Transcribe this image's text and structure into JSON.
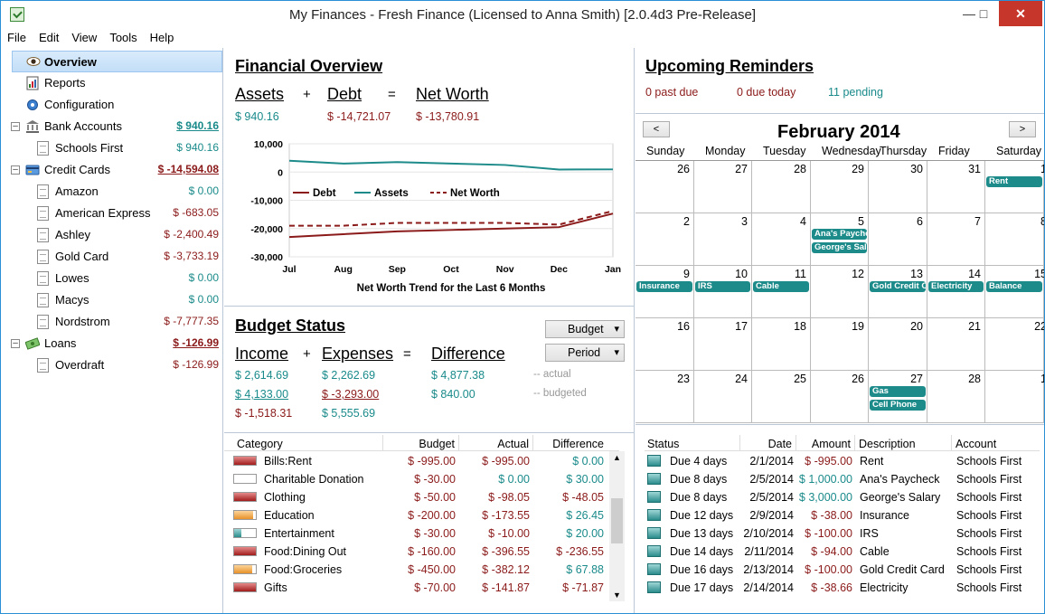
{
  "window": {
    "title": "My Finances - Fresh Finance (Licensed to Anna Smith) [2.0.4d3 Pre-Release]"
  },
  "menu": [
    "File",
    "Edit",
    "View",
    "Tools",
    "Help"
  ],
  "sidebar": {
    "overview": "Overview",
    "reports": "Reports",
    "configuration": "Configuration",
    "bank": {
      "label": "Bank Accounts",
      "amount": "$ 940.16",
      "items": [
        {
          "label": "Schools First",
          "amount": "$ 940.16"
        }
      ]
    },
    "credit": {
      "label": "Credit Cards",
      "amount": "$ -14,594.08",
      "items": [
        {
          "label": "Amazon",
          "amount": "$ 0.00"
        },
        {
          "label": "American Express",
          "amount": "$ -683.05"
        },
        {
          "label": "Ashley",
          "amount": "$ -2,400.49"
        },
        {
          "label": "Gold Card",
          "amount": "$ -3,733.19"
        },
        {
          "label": "Lowes",
          "amount": "$ 0.00"
        },
        {
          "label": "Macys",
          "amount": "$ 0.00"
        },
        {
          "label": "Nordstrom",
          "amount": "$ -7,777.35"
        }
      ]
    },
    "loans": {
      "label": "Loans",
      "amount": "$ -126.99",
      "items": [
        {
          "label": "Overdraft",
          "amount": "$ -126.99"
        }
      ]
    }
  },
  "overview": {
    "title": "Financial Overview",
    "assets_label": "Assets",
    "debt_label": "Debt",
    "networth_label": "Net Worth",
    "plus": "+",
    "equals": "=",
    "assets_value": "$ 940.16",
    "debt_value": "$ -14,721.07",
    "networth_value": "$ -13,780.91",
    "chart_caption": "Net Worth Trend for the Last 6 Months"
  },
  "chart_data": {
    "type": "line",
    "title": "Net Worth Trend for the Last 6 Months",
    "categories": [
      "Jul",
      "Aug",
      "Sep",
      "Oct",
      "Nov",
      "Dec",
      "Jan"
    ],
    "ylim": [
      -30000,
      10000
    ],
    "yticks": [
      "10,000",
      "0",
      "-10,000",
      "-20,000",
      "-30,000"
    ],
    "legend": "inside-top-left",
    "series": [
      {
        "name": "Debt",
        "color": "#8b1a1a",
        "dash": false,
        "values": [
          -23000,
          -22000,
          -21000,
          -20500,
          -20000,
          -19500,
          -14700
        ]
      },
      {
        "name": "Assets",
        "color": "#1e8b8b",
        "dash": false,
        "values": [
          4000,
          3000,
          3500,
          3000,
          2500,
          900,
          940
        ]
      },
      {
        "name": "Net Worth",
        "color": "#8b1a1a",
        "dash": true,
        "values": [
          -19000,
          -19000,
          -18000,
          -18000,
          -18000,
          -18600,
          -13780
        ]
      }
    ]
  },
  "budget": {
    "title": "Budget Status",
    "combo_budget": "Budget",
    "combo_period": "Period",
    "income_label": "Income",
    "expenses_label": "Expenses",
    "difference_label": "Difference",
    "plus": "+",
    "equals": "=",
    "income_actual": "$ 2,614.69",
    "expenses_actual": "$ 2,262.69",
    "difference_actual": "$ 4,877.38",
    "actual_note": "-- actual",
    "income_budgeted": "$ 4,133.00",
    "expenses_budgeted": "$ -3,293.00",
    "difference_budgeted": "$ 840.00",
    "budgeted_note": "-- budgeted",
    "income_diff": "$ -1,518.31",
    "expenses_diff": "$ 5,555.69",
    "columns": [
      "Category",
      "Budget",
      "Actual",
      "Difference"
    ],
    "rows": [
      {
        "category": "Bills:Rent",
        "budget": "$ -995.00",
        "actual": "$ -995.00",
        "difference": "$ 0.00",
        "fill": 1.0,
        "color": "red"
      },
      {
        "category": "Charitable Donation",
        "budget": "$ -30.00",
        "actual": "$ 0.00",
        "difference": "$ 30.00",
        "fill": 0.0,
        "color": "none"
      },
      {
        "category": "Clothing",
        "budget": "$ -50.00",
        "actual": "$ -98.05",
        "difference": "$ -48.05",
        "fill": 1.0,
        "color": "red"
      },
      {
        "category": "Education",
        "budget": "$ -200.00",
        "actual": "$ -173.55",
        "difference": "$ 26.45",
        "fill": 0.87,
        "color": "orange"
      },
      {
        "category": "Entertainment",
        "budget": "$ -30.00",
        "actual": "$ -10.00",
        "difference": "$ 20.00",
        "fill": 0.33,
        "color": "teal"
      },
      {
        "category": "Food:Dining Out",
        "budget": "$ -160.00",
        "actual": "$ -396.55",
        "difference": "$ -236.55",
        "fill": 1.0,
        "color": "red"
      },
      {
        "category": "Food:Groceries",
        "budget": "$ -450.00",
        "actual": "$ -382.12",
        "difference": "$ 67.88",
        "fill": 0.85,
        "color": "orange"
      },
      {
        "category": "Gifts",
        "budget": "$ -70.00",
        "actual": "$ -141.87",
        "difference": "$ -71.87",
        "fill": 1.0,
        "color": "red"
      }
    ]
  },
  "reminders": {
    "title": "Upcoming Reminders",
    "past_due": "0 past due",
    "due_today": "0 due today",
    "pending": "11 pending",
    "month": "February 2014",
    "prev": "<",
    "next": ">",
    "days": [
      "Sunday",
      "Monday",
      "Tuesday",
      "Wednesday",
      "Thursday",
      "Friday",
      "Saturday"
    ],
    "weeks": [
      [
        "26",
        "27",
        "28",
        "29",
        "30",
        "31",
        "1"
      ],
      [
        "2",
        "3",
        "4",
        "5",
        "6",
        "7",
        "8"
      ],
      [
        "9",
        "10",
        "11",
        "12",
        "13",
        "14",
        "15"
      ],
      [
        "16",
        "17",
        "18",
        "19",
        "20",
        "21",
        "22"
      ],
      [
        "23",
        "24",
        "25",
        "26",
        "27",
        "28",
        "1"
      ]
    ],
    "events": [
      {
        "week": 0,
        "day": 6,
        "slot": 0,
        "label": "Rent"
      },
      {
        "week": 1,
        "day": 3,
        "slot": 0,
        "label": "Ana's Paycheck"
      },
      {
        "week": 1,
        "day": 3,
        "slot": 1,
        "label": "George's Salary"
      },
      {
        "week": 2,
        "day": 0,
        "slot": 0,
        "label": "Insurance"
      },
      {
        "week": 2,
        "day": 1,
        "slot": 0,
        "label": "IRS"
      },
      {
        "week": 2,
        "day": 2,
        "slot": 0,
        "label": "Cable"
      },
      {
        "week": 2,
        "day": 4,
        "slot": 0,
        "label": "Gold Credit Card"
      },
      {
        "week": 2,
        "day": 5,
        "slot": 0,
        "label": "Electricity"
      },
      {
        "week": 2,
        "day": 6,
        "slot": 0,
        "label": "Balance"
      },
      {
        "week": 4,
        "day": 4,
        "slot": 0,
        "label": "Gas"
      },
      {
        "week": 4,
        "day": 4,
        "slot": 1,
        "label": "Cell Phone"
      }
    ],
    "columns": [
      "Status",
      "Date",
      "Amount",
      "Description",
      "Account"
    ],
    "rows": [
      {
        "status": "Due 4 days",
        "date": "2/1/2014",
        "amount": "$ -995.00",
        "desc": "Rent",
        "account": "Schools First",
        "pos": false
      },
      {
        "status": "Due 8 days",
        "date": "2/5/2014",
        "amount": "$ 1,000.00",
        "desc": "Ana's Paycheck",
        "account": "Schools First",
        "pos": true
      },
      {
        "status": "Due 8 days",
        "date": "2/5/2014",
        "amount": "$ 3,000.00",
        "desc": "George's Salary",
        "account": "Schools First",
        "pos": true
      },
      {
        "status": "Due 12 days",
        "date": "2/9/2014",
        "amount": "$ -38.00",
        "desc": "Insurance",
        "account": "Schools First",
        "pos": false
      },
      {
        "status": "Due 13 days",
        "date": "2/10/2014",
        "amount": "$ -100.00",
        "desc": "IRS",
        "account": "Schools First",
        "pos": false
      },
      {
        "status": "Due 14 days",
        "date": "2/11/2014",
        "amount": "$ -94.00",
        "desc": "Cable",
        "account": "Schools First",
        "pos": false
      },
      {
        "status": "Due 16 days",
        "date": "2/13/2014",
        "amount": "$ -100.00",
        "desc": "Gold Credit Card",
        "account": "Schools First",
        "pos": false
      },
      {
        "status": "Due 17 days",
        "date": "2/14/2014",
        "amount": "$ -38.66",
        "desc": "Electricity",
        "account": "Schools First",
        "pos": false
      }
    ]
  }
}
